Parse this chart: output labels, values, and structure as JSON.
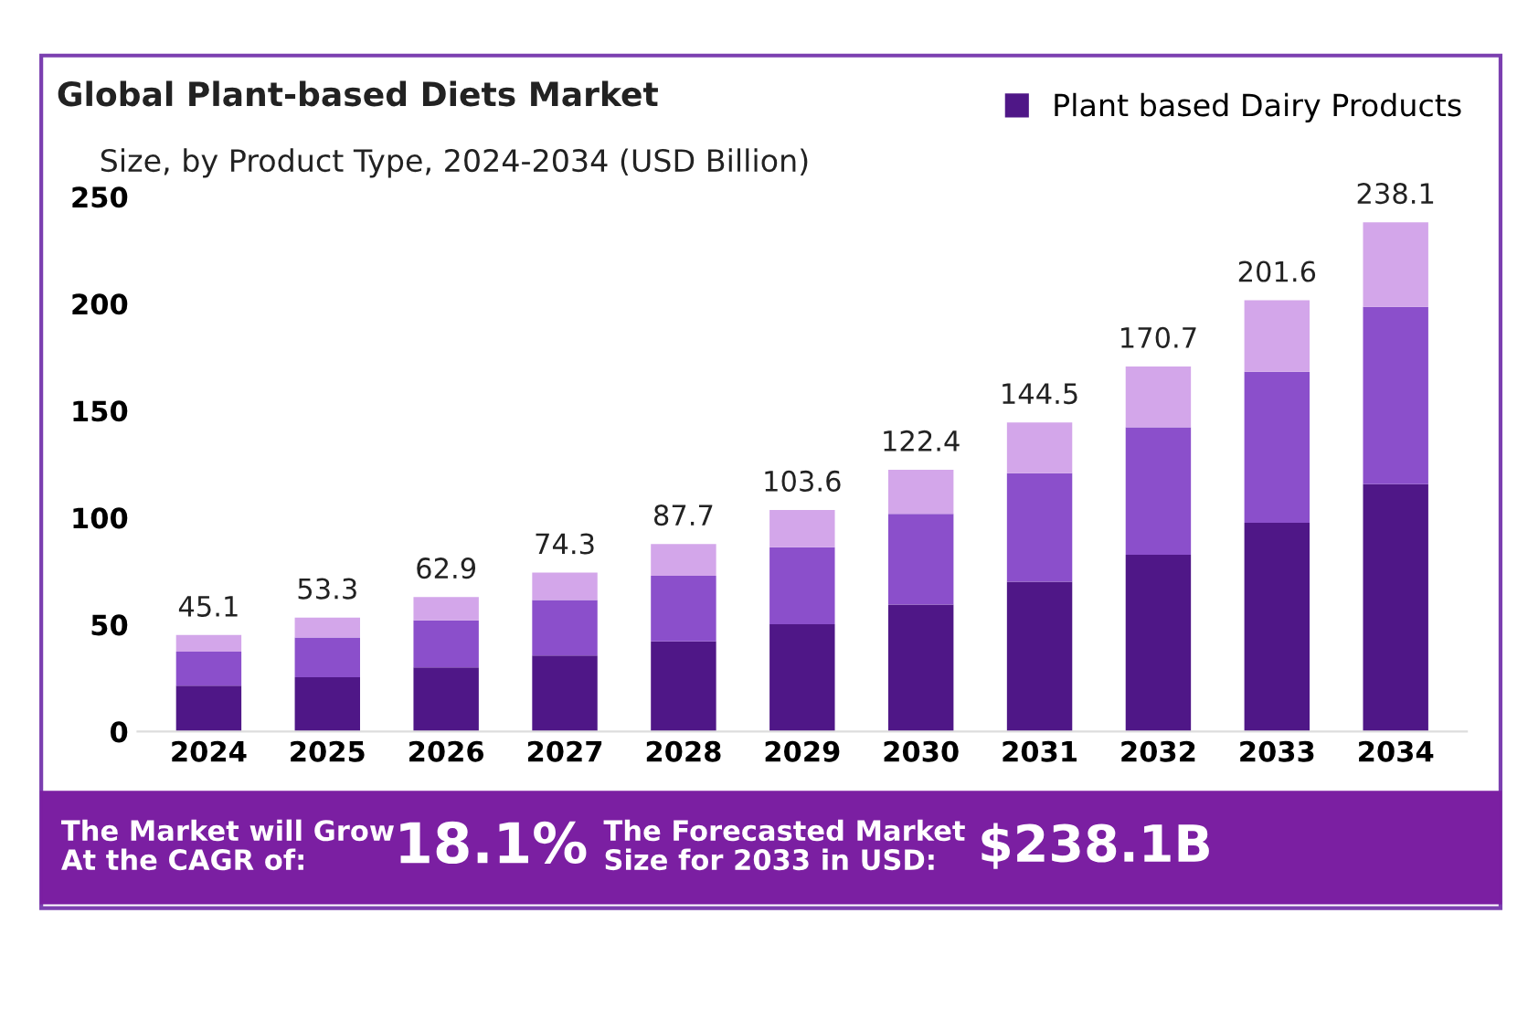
{
  "chart_data": {
    "type": "bar",
    "title": "Global Plant-based Diets Market",
    "subtitle": "Size, by Product Type, 2024-2034 (USD Billion)",
    "categories": [
      "2024",
      "2025",
      "2026",
      "2027",
      "2028",
      "2029",
      "2030",
      "2031",
      "2032",
      "2033",
      "2034"
    ],
    "stacked": true,
    "series": [
      {
        "name": "Plant based Dairy Products",
        "color": "#4f1787",
        "values": [
          21.4,
          25.4,
          30.0,
          35.5,
          42.2,
          50.2,
          59.3,
          70.0,
          82.6,
          97.6,
          115.6
        ]
      },
      {
        "color": "#8b4fcb",
        "values": [
          15.9,
          18.6,
          22.0,
          26.0,
          30.6,
          36.0,
          42.5,
          50.8,
          59.6,
          70.6,
          82.9
        ]
      },
      {
        "color": "#d3a6ea",
        "values": [
          7.8,
          9.3,
          10.9,
          12.8,
          14.9,
          17.4,
          20.6,
          23.7,
          28.5,
          33.4,
          39.6
        ]
      }
    ],
    "totals": [
      "45.1",
      "53.3",
      "62.9",
      "74.3",
      "87.7",
      "103.6",
      "122.4",
      "144.5",
      "170.7",
      "201.6",
      "238.1"
    ],
    "ylim": [
      0,
      250
    ],
    "yticks": [
      0,
      50,
      100,
      150,
      200,
      250
    ],
    "grid": false,
    "legend": "top right",
    "annotations": [
      "The Market will Grow\nAt the CAGR of:",
      "18.1%",
      "The Forecasted Market\nSize for 2033 in USD:",
      "$238.1B"
    ]
  }
}
